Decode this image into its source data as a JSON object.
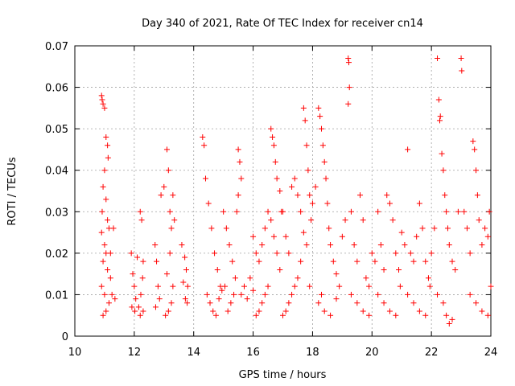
{
  "chart_data": {
    "type": "scatter",
    "title": "Day 340 of 2021, Rate Of TEC Index for receiver cn14",
    "xlabel": "GPS time / hours",
    "ylabel": "ROTI / TECUs",
    "xlim": [
      10,
      24
    ],
    "ylim": [
      0,
      0.07
    ],
    "x_ticks": [
      "10",
      "12",
      "14",
      "16",
      "18",
      "20",
      "22",
      "24"
    ],
    "y_ticks": [
      "0",
      "0.01",
      "0.02",
      "0.03",
      "0.04",
      "0.05",
      "0.06",
      "0.07"
    ],
    "grid": true,
    "marker": "+",
    "color": "#ff0000",
    "series": [
      {
        "name": "ROTI",
        "points": [
          [
            10.9,
            0.058
          ],
          [
            10.92,
            0.057
          ],
          [
            10.95,
            0.056
          ],
          [
            11.0,
            0.055
          ],
          [
            11.05,
            0.048
          ],
          [
            11.1,
            0.046
          ],
          [
            11.12,
            0.043
          ],
          [
            11.0,
            0.04
          ],
          [
            10.95,
            0.036
          ],
          [
            11.05,
            0.033
          ],
          [
            10.92,
            0.03
          ],
          [
            11.1,
            0.028
          ],
          [
            11.15,
            0.026
          ],
          [
            10.9,
            0.025
          ],
          [
            11.0,
            0.022
          ],
          [
            11.05,
            0.02
          ],
          [
            10.95,
            0.018
          ],
          [
            11.1,
            0.016
          ],
          [
            11.2,
            0.014
          ],
          [
            10.9,
            0.012
          ],
          [
            11.0,
            0.01
          ],
          [
            11.15,
            0.008
          ],
          [
            11.05,
            0.006
          ],
          [
            10.95,
            0.005
          ],
          [
            11.3,
            0.026
          ],
          [
            11.2,
            0.02
          ],
          [
            11.25,
            0.01
          ],
          [
            11.35,
            0.009
          ],
          [
            11.9,
            0.02
          ],
          [
            11.95,
            0.015
          ],
          [
            12.0,
            0.012
          ],
          [
            12.05,
            0.009
          ],
          [
            11.92,
            0.007
          ],
          [
            12.02,
            0.006
          ],
          [
            12.1,
            0.019
          ],
          [
            12.2,
            0.03
          ],
          [
            12.25,
            0.028
          ],
          [
            12.3,
            0.018
          ],
          [
            12.28,
            0.014
          ],
          [
            12.22,
            0.01
          ],
          [
            12.15,
            0.007
          ],
          [
            12.3,
            0.006
          ],
          [
            12.2,
            0.005
          ],
          [
            12.7,
            0.022
          ],
          [
            12.75,
            0.018
          ],
          [
            12.8,
            0.012
          ],
          [
            12.85,
            0.009
          ],
          [
            12.72,
            0.007
          ],
          [
            12.9,
            0.034
          ],
          [
            13.0,
            0.036
          ],
          [
            13.1,
            0.045
          ],
          [
            13.15,
            0.04
          ],
          [
            13.2,
            0.03
          ],
          [
            13.25,
            0.026
          ],
          [
            13.3,
            0.034
          ],
          [
            13.35,
            0.028
          ],
          [
            13.2,
            0.02
          ],
          [
            13.1,
            0.015
          ],
          [
            13.3,
            0.012
          ],
          [
            13.25,
            0.008
          ],
          [
            13.15,
            0.006
          ],
          [
            13.05,
            0.005
          ],
          [
            13.6,
            0.022
          ],
          [
            13.7,
            0.019
          ],
          [
            13.75,
            0.016
          ],
          [
            13.8,
            0.012
          ],
          [
            13.72,
            0.009
          ],
          [
            13.78,
            0.008
          ],
          [
            13.65,
            0.013
          ],
          [
            14.3,
            0.048
          ],
          [
            14.35,
            0.046
          ],
          [
            14.4,
            0.038
          ],
          [
            14.5,
            0.032
          ],
          [
            14.6,
            0.026
          ],
          [
            14.7,
            0.02
          ],
          [
            14.8,
            0.016
          ],
          [
            14.9,
            0.012
          ],
          [
            14.45,
            0.01
          ],
          [
            14.55,
            0.008
          ],
          [
            14.65,
            0.006
          ],
          [
            14.75,
            0.005
          ],
          [
            14.85,
            0.009
          ],
          [
            14.95,
            0.011
          ],
          [
            15.0,
            0.03
          ],
          [
            15.1,
            0.026
          ],
          [
            15.2,
            0.022
          ],
          [
            15.3,
            0.018
          ],
          [
            15.4,
            0.014
          ],
          [
            15.5,
            0.045
          ],
          [
            15.55,
            0.042
          ],
          [
            15.6,
            0.038
          ],
          [
            15.5,
            0.034
          ],
          [
            15.45,
            0.03
          ],
          [
            15.35,
            0.01
          ],
          [
            15.25,
            0.008
          ],
          [
            15.15,
            0.006
          ],
          [
            15.05,
            0.012
          ],
          [
            15.6,
            0.01
          ],
          [
            15.7,
            0.012
          ],
          [
            15.8,
            0.009
          ],
          [
            15.9,
            0.014
          ],
          [
            16.0,
            0.024
          ],
          [
            16.1,
            0.02
          ],
          [
            16.2,
            0.018
          ],
          [
            16.3,
            0.022
          ],
          [
            16.4,
            0.026
          ],
          [
            16.5,
            0.03
          ],
          [
            16.6,
            0.05
          ],
          [
            16.65,
            0.048
          ],
          [
            16.7,
            0.046
          ],
          [
            16.75,
            0.042
          ],
          [
            16.8,
            0.038
          ],
          [
            16.9,
            0.035
          ],
          [
            16.95,
            0.03
          ],
          [
            16.6,
            0.028
          ],
          [
            16.7,
            0.024
          ],
          [
            16.8,
            0.02
          ],
          [
            16.9,
            0.016
          ],
          [
            16.5,
            0.012
          ],
          [
            16.4,
            0.01
          ],
          [
            16.3,
            0.008
          ],
          [
            16.2,
            0.006
          ],
          [
            16.1,
            0.005
          ],
          [
            16.0,
            0.011
          ],
          [
            17.0,
            0.03
          ],
          [
            17.1,
            0.024
          ],
          [
            17.2,
            0.02
          ],
          [
            17.3,
            0.036
          ],
          [
            17.4,
            0.038
          ],
          [
            17.5,
            0.034
          ],
          [
            17.6,
            0.03
          ],
          [
            17.7,
            0.055
          ],
          [
            17.75,
            0.052
          ],
          [
            17.8,
            0.046
          ],
          [
            17.85,
            0.04
          ],
          [
            17.9,
            0.034
          ],
          [
            17.95,
            0.028
          ],
          [
            17.7,
            0.025
          ],
          [
            17.8,
            0.022
          ],
          [
            17.6,
            0.018
          ],
          [
            17.5,
            0.014
          ],
          [
            17.4,
            0.012
          ],
          [
            17.3,
            0.01
          ],
          [
            17.2,
            0.008
          ],
          [
            17.1,
            0.006
          ],
          [
            17.0,
            0.005
          ],
          [
            17.9,
            0.012
          ],
          [
            18.0,
            0.032
          ],
          [
            18.1,
            0.036
          ],
          [
            18.2,
            0.055
          ],
          [
            18.25,
            0.053
          ],
          [
            18.3,
            0.05
          ],
          [
            18.35,
            0.046
          ],
          [
            18.4,
            0.042
          ],
          [
            18.45,
            0.038
          ],
          [
            18.5,
            0.032
          ],
          [
            18.55,
            0.026
          ],
          [
            18.6,
            0.022
          ],
          [
            18.7,
            0.018
          ],
          [
            18.8,
            0.015
          ],
          [
            18.9,
            0.012
          ],
          [
            18.3,
            0.01
          ],
          [
            18.2,
            0.008
          ],
          [
            18.4,
            0.006
          ],
          [
            18.6,
            0.005
          ],
          [
            18.8,
            0.009
          ],
          [
            19.0,
            0.024
          ],
          [
            19.1,
            0.028
          ],
          [
            19.2,
            0.067
          ],
          [
            19.22,
            0.066
          ],
          [
            19.24,
            0.06
          ],
          [
            19.2,
            0.056
          ],
          [
            19.3,
            0.03
          ],
          [
            19.4,
            0.022
          ],
          [
            19.5,
            0.018
          ],
          [
            19.6,
            0.034
          ],
          [
            19.7,
            0.028
          ],
          [
            19.8,
            0.014
          ],
          [
            19.9,
            0.012
          ],
          [
            19.3,
            0.01
          ],
          [
            19.5,
            0.008
          ],
          [
            19.7,
            0.006
          ],
          [
            19.9,
            0.005
          ],
          [
            20.0,
            0.02
          ],
          [
            20.1,
            0.018
          ],
          [
            20.2,
            0.03
          ],
          [
            20.3,
            0.022
          ],
          [
            20.4,
            0.016
          ],
          [
            20.5,
            0.034
          ],
          [
            20.6,
            0.032
          ],
          [
            20.7,
            0.028
          ],
          [
            20.8,
            0.02
          ],
          [
            20.9,
            0.016
          ],
          [
            20.2,
            0.01
          ],
          [
            20.4,
            0.008
          ],
          [
            20.6,
            0.006
          ],
          [
            20.8,
            0.005
          ],
          [
            20.95,
            0.012
          ],
          [
            21.0,
            0.025
          ],
          [
            21.1,
            0.022
          ],
          [
            21.2,
            0.045
          ],
          [
            21.3,
            0.02
          ],
          [
            21.4,
            0.018
          ],
          [
            21.5,
            0.024
          ],
          [
            21.6,
            0.032
          ],
          [
            21.7,
            0.026
          ],
          [
            21.8,
            0.018
          ],
          [
            21.9,
            0.014
          ],
          [
            21.2,
            0.01
          ],
          [
            21.4,
            0.008
          ],
          [
            21.6,
            0.006
          ],
          [
            21.8,
            0.005
          ],
          [
            21.95,
            0.012
          ],
          [
            22.0,
            0.02
          ],
          [
            22.1,
            0.026
          ],
          [
            22.2,
            0.067
          ],
          [
            22.25,
            0.057
          ],
          [
            22.3,
            0.053
          ],
          [
            22.28,
            0.052
          ],
          [
            22.35,
            0.044
          ],
          [
            22.4,
            0.04
          ],
          [
            22.45,
            0.034
          ],
          [
            22.5,
            0.03
          ],
          [
            22.55,
            0.026
          ],
          [
            22.6,
            0.022
          ],
          [
            22.7,
            0.018
          ],
          [
            22.8,
            0.016
          ],
          [
            22.9,
            0.03
          ],
          [
            22.2,
            0.01
          ],
          [
            22.4,
            0.008
          ],
          [
            22.5,
            0.005
          ],
          [
            22.6,
            0.003
          ],
          [
            22.7,
            0.004
          ],
          [
            23.0,
            0.067
          ],
          [
            23.02,
            0.064
          ],
          [
            23.1,
            0.03
          ],
          [
            23.2,
            0.026
          ],
          [
            23.3,
            0.02
          ],
          [
            23.4,
            0.047
          ],
          [
            23.45,
            0.045
          ],
          [
            23.5,
            0.04
          ],
          [
            23.55,
            0.034
          ],
          [
            23.6,
            0.028
          ],
          [
            23.7,
            0.022
          ],
          [
            23.8,
            0.026
          ],
          [
            23.9,
            0.024
          ],
          [
            23.95,
            0.03
          ],
          [
            23.3,
            0.01
          ],
          [
            23.5,
            0.008
          ],
          [
            23.7,
            0.006
          ],
          [
            23.9,
            0.005
          ],
          [
            24.0,
            0.012
          ]
        ]
      }
    ]
  }
}
